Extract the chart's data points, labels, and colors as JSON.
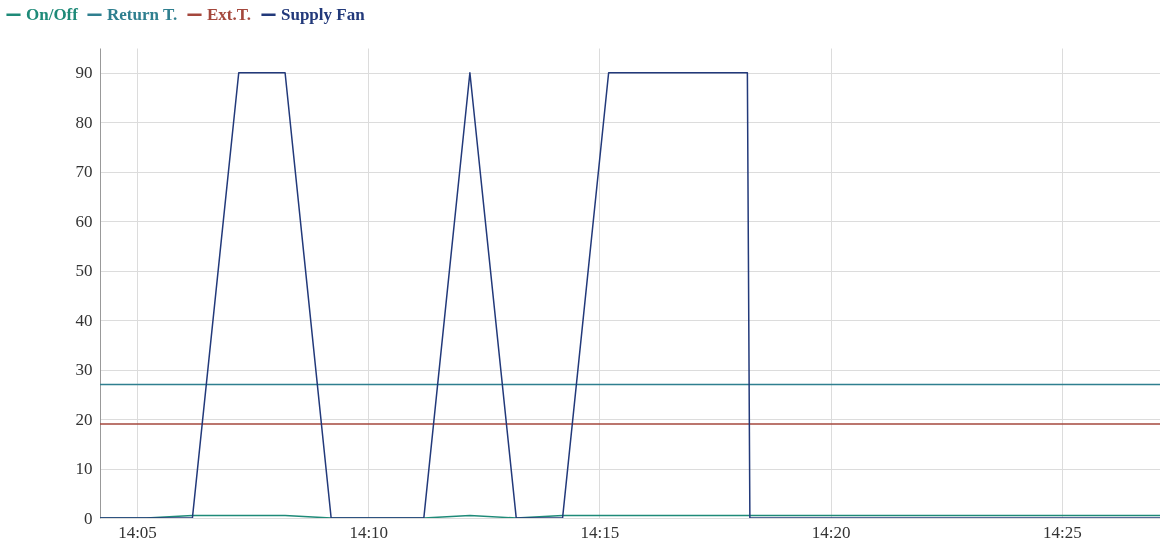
{
  "chart_data": {
    "type": "line",
    "legend": "top left",
    "grid": true,
    "xlim": [
      14.07,
      14.452
    ],
    "ylim": [
      0,
      95
    ],
    "xticks": [
      {
        "value": 14.083333,
        "label": "14:05"
      },
      {
        "value": 14.166667,
        "label": "14:10"
      },
      {
        "value": 14.25,
        "label": "14:15"
      },
      {
        "value": 14.333333,
        "label": "14:20"
      },
      {
        "value": 14.416667,
        "label": "14:25"
      }
    ],
    "yticks": [
      0,
      10,
      20,
      30,
      40,
      50,
      60,
      70,
      80,
      90
    ],
    "series": [
      {
        "name": "On/Off",
        "color": "#1e8a78",
        "x": [
          14.07,
          14.0867,
          14.1033,
          14.12,
          14.1367,
          14.1533,
          14.17,
          14.1867,
          14.2033,
          14.22,
          14.2367,
          14.452
        ],
        "values": [
          0,
          0,
          0.5,
          0.5,
          0.5,
          0,
          0,
          0,
          0.5,
          0,
          0.5,
          0.5
        ]
      },
      {
        "name": "Return T.",
        "color": "#2f7f8f",
        "x": [
          14.07,
          14.452
        ],
        "values": [
          27,
          27
        ]
      },
      {
        "name": "Ext.T.",
        "color": "#a4473c",
        "x": [
          14.07,
          14.452
        ],
        "values": [
          19,
          19
        ]
      },
      {
        "name": "Supply Fan",
        "color": "#22397a",
        "x": [
          14.07,
          14.0867,
          14.1033,
          14.12,
          14.1367,
          14.1533,
          14.17,
          14.1867,
          14.2033,
          14.22,
          14.2367,
          14.2533,
          14.27,
          14.2867,
          14.3033,
          14.3042,
          14.452
        ],
        "values": [
          0,
          0,
          0,
          90,
          90,
          0,
          0,
          0,
          90,
          0,
          0,
          90,
          90,
          90,
          90,
          0,
          0
        ]
      }
    ]
  }
}
